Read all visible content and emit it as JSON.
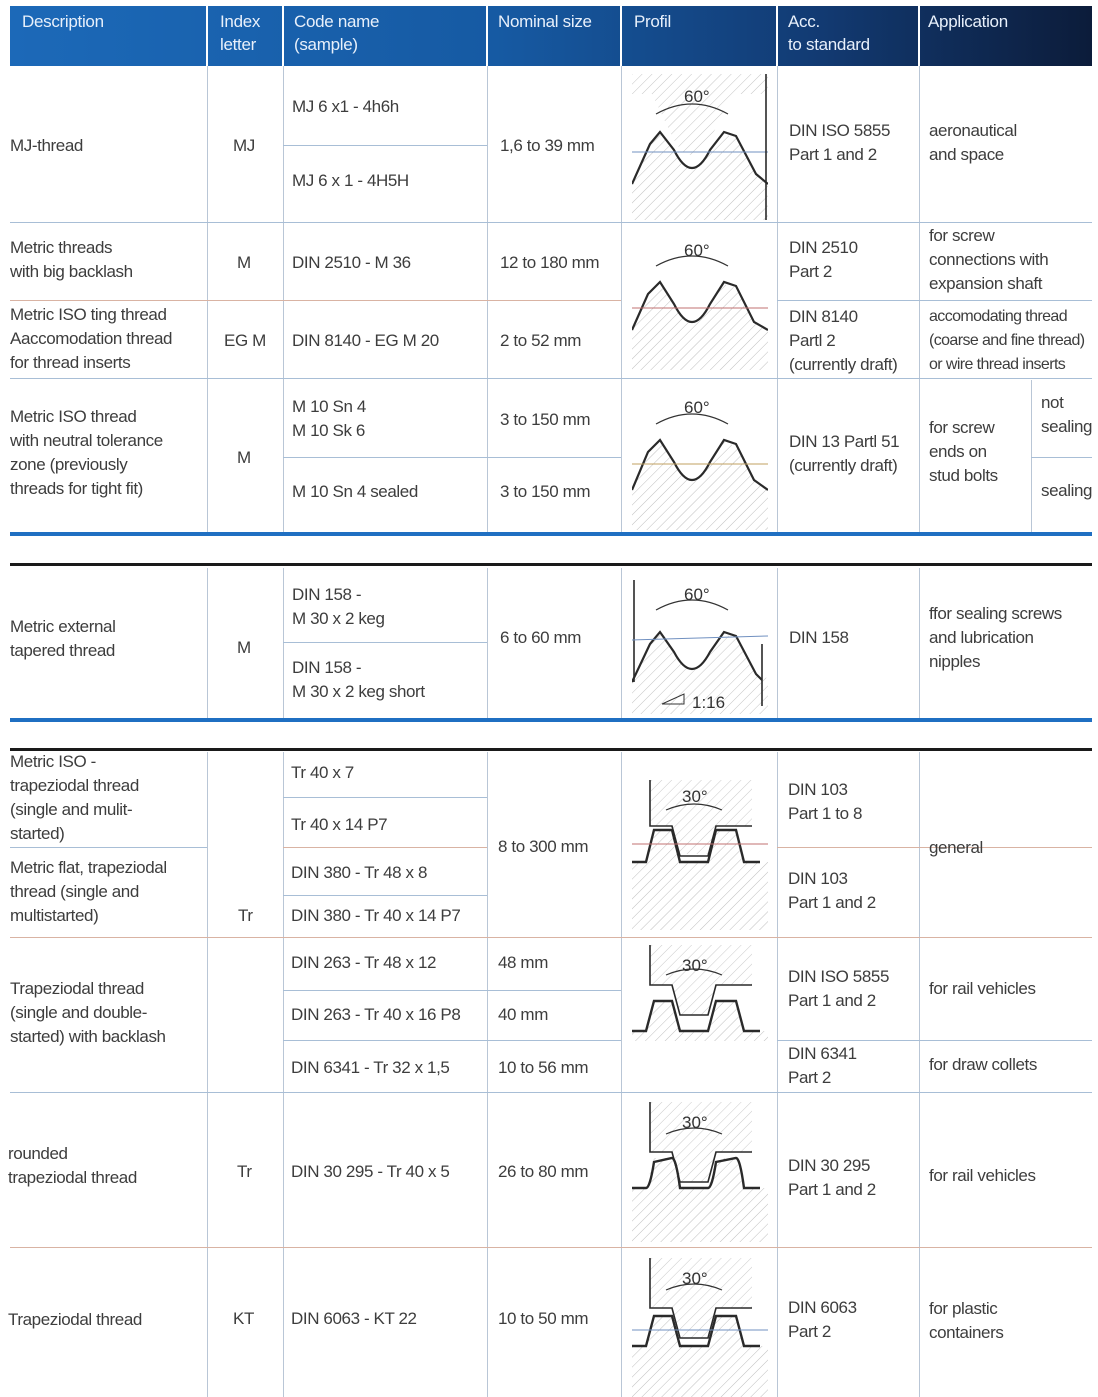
{
  "header": {
    "description": "Description",
    "index_letter": "Index\nletter",
    "code_name": "Code name\n(sample)",
    "nominal_size": "Nominal size",
    "profil": "Profil",
    "acc_standard": "Acc.\nto standard",
    "application": "Application"
  },
  "rows": {
    "mj": {
      "description": "MJ-thread",
      "index": "MJ",
      "code1": "MJ 6 x1 - 4h6h",
      "code2": "MJ 6 x 1 - 4H5H",
      "size": "1,6 to 39 mm",
      "standard": "DIN ISO 5855\nPart 1 and 2",
      "application": "aeronautical\nand space"
    },
    "metric_backlash": {
      "description": "Metric threads\nwith big backlash",
      "index": "M",
      "code": "DIN 2510 - M 36",
      "size": "12 to 180 mm",
      "standard": "DIN 2510\nPart 2",
      "application": "for  screw\nconnections with\nexpansion shaft"
    },
    "metric_ting": {
      "description": "Metric ISO ting thread\nAaccomodation thread\nfor thread inserts",
      "index": "EG M",
      "code": "DIN 8140 - EG M 20",
      "size": "2 to 52 mm",
      "standard": "DIN 8140\nPartl 2\n(currently draft)",
      "application": "accomodating thread\n(coarse and fine thread)\nor wire thread inserts"
    },
    "metric_neutral": {
      "description": "Metric ISO thread\nwith neutral tolerance\nzone (previously\nthreads for tight fit)",
      "index": "M",
      "code1": "M 10 Sn 4\nM 10 Sk 6",
      "code2": "M 10 Sn 4 sealed",
      "size1": "3 to 150 mm",
      "size2": "3 to 150 mm",
      "standard": "DIN 13 Partl 51\n(currently draft)",
      "application": "for screw\nends on\nstud bolts",
      "sub1": "not\nsealing",
      "sub2": "sealing"
    },
    "tapered": {
      "description": "Metric external\ntapered thread",
      "index": "M",
      "code1": "DIN 158 -\nM 30 x 2 keg",
      "code2": "DIN 158 -\nM 30 x 2 keg short",
      "size": "6 to 60 mm",
      "standard": "DIN 158",
      "application": "ffor sealing screws\nand lubrication\nnipples",
      "taper_label": "1:16"
    },
    "trapezoidal": {
      "description1": "Metric ISO -\ntrapeziodal thread\n(single and mulit-\nstarted)",
      "description2": "Metric flat, trapeziodal\nthread (single and\nmultistarted)",
      "description3": "Trapeziodal thread\n(single and double-\nstarted) with backlash",
      "index": "Tr",
      "codes": [
        "Tr 40 x 7",
        "Tr 40 x 14 P7",
        "DIN 380 - Tr 48 x 8",
        "DIN 380 - Tr 40 x 14 P7",
        "DIN 263 - Tr 48 x 12",
        "DIN 263 - Tr 40 x 16 P8",
        "DIN 6341 - Tr 32 x 1,5"
      ],
      "size_general": "8 to 300 mm",
      "size_48": "48 mm",
      "size_40": "40 mm",
      "size_6341": "10 to 56 mm",
      "standard1": "DIN 103\nPart 1 to 8",
      "standard2": "DIN 103\nPart 1 and 2",
      "standard3": "DIN ISO 5855\nPart 1 and 2",
      "standard4": "DIN 6341\nPart 2",
      "application_general": "general",
      "application_rail": "for rail vehicles",
      "application_collets": "for draw collets"
    },
    "rounded": {
      "description": "rounded\ntrapeziodal thread",
      "index": "Tr",
      "code": "DIN 30 295 - Tr 40 x 5",
      "size": "26 to 80 mm",
      "standard": "DIN 30 295\nPart 1 and 2",
      "application": "for rail vehicles"
    },
    "kt": {
      "description": "Trapeziodal thread",
      "index": "KT",
      "code": "DIN 6063 - KT 22",
      "size": "10 to 50 mm",
      "standard": "DIN 6063\nPart 2",
      "application": "for plastic\ncontainers"
    }
  },
  "profiles": {
    "angle60": "60°",
    "angle30": "30°"
  }
}
